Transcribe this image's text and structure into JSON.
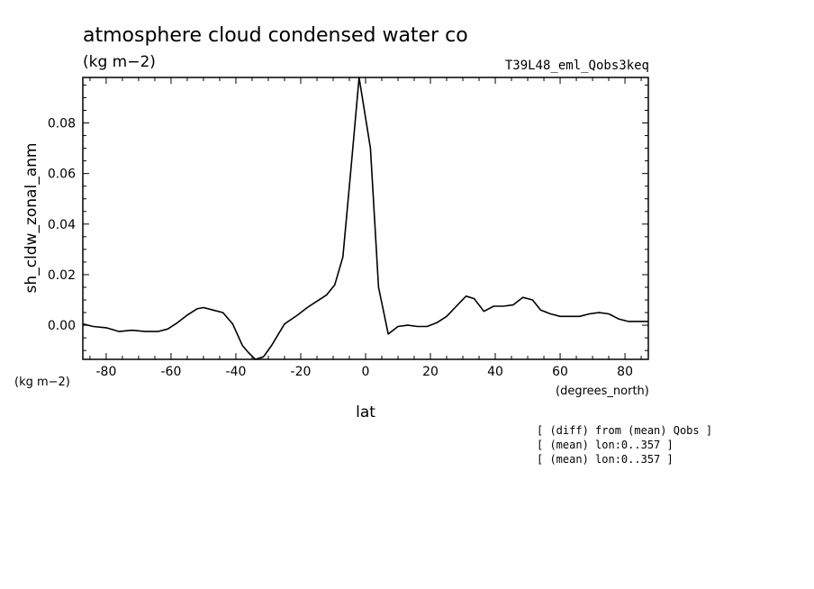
{
  "header": {
    "title": "atmosphere cloud condensed water co",
    "units": "(kg m−2)",
    "run_id": "T39L48_eml_Qobs3keq"
  },
  "notes": [
    "[ (diff) from (mean) Qobs ]",
    "[ (mean) lon:0..357 ]",
    "[ (mean) lon:0..357 ]"
  ],
  "chart_data": {
    "type": "line",
    "xlabel": "lat",
    "ylabel": "sh_cldw_zonal_anm",
    "x_units": "(degrees_north)",
    "y_units": "(kg m−2)",
    "xlim": [
      -87.2,
      87.2
    ],
    "ylim": [
      -0.0135,
      0.098
    ],
    "x_ticks": [
      -80,
      -60,
      -40,
      -20,
      0,
      20,
      40,
      60,
      80
    ],
    "y_ticks": [
      0.0,
      0.02,
      0.04,
      0.06,
      0.08
    ],
    "y_tick_labels": [
      "0.00",
      "0.02",
      "0.04",
      "0.06",
      "0.08"
    ],
    "grid": false,
    "series": [
      {
        "x": [
          -87.2,
          -84.0,
          -80.0,
          -76.0,
          -72.0,
          -68.0,
          -64.0,
          -61.0,
          -58.0,
          -55.0,
          -52.0,
          -50.0,
          -47.0,
          -44.0,
          -41.0,
          -38.0,
          -36.0,
          -34.0,
          -31.5,
          -29.0,
          -25.0,
          -21.0,
          -18.0,
          -15.0,
          -12.0,
          -9.5,
          -7.0,
          -4.5,
          -2.0,
          1.5,
          4.0,
          7.0,
          10.0,
          13.0,
          16.0,
          19.0,
          22.0,
          25.0,
          28.0,
          31.0,
          33.5,
          36.5,
          39.5,
          42.5,
          45.5,
          48.5,
          51.5,
          54.0,
          57.0,
          60.0,
          63.0,
          66.0,
          69.0,
          72.0,
          75.0,
          78.0,
          81.0,
          84.0,
          87.2
        ],
        "y": [
          0.0005,
          -0.0005,
          -0.001,
          -0.0025,
          -0.002,
          -0.0025,
          -0.0025,
          -0.0015,
          0.001,
          0.004,
          0.0065,
          0.007,
          0.006,
          0.005,
          0.0005,
          -0.008,
          -0.011,
          -0.0135,
          -0.0125,
          -0.008,
          0.0005,
          0.004,
          0.007,
          0.0095,
          0.012,
          0.016,
          0.027,
          0.062,
          0.098,
          0.07,
          0.015,
          -0.0035,
          -0.0005,
          0.0,
          -0.0005,
          -0.0005,
          0.001,
          0.0035,
          0.0075,
          0.0115,
          0.0105,
          0.0055,
          0.0075,
          0.0075,
          0.008,
          0.011,
          0.01,
          0.006,
          0.0045,
          0.0035,
          0.0035,
          0.0035,
          0.0045,
          0.005,
          0.0045,
          0.0025,
          0.0015,
          0.0015,
          0.0015
        ]
      }
    ]
  }
}
